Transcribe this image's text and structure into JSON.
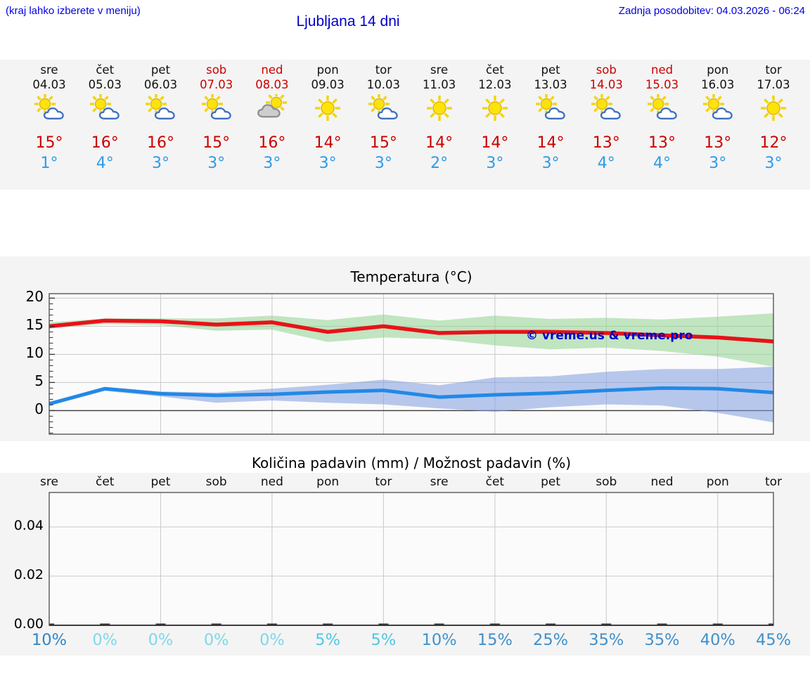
{
  "header": {
    "hint": "(kraj lahko izberete v meniju)",
    "title": "Ljubljana 14 dni",
    "updated": "Zadnja posodobitev: 04.03.2026 - 06:24"
  },
  "watermark": "© vreme.us & vreme.pro",
  "forecast": {
    "days": [
      {
        "name": "sre",
        "date": "04.03",
        "weekend": false,
        "icon": "sun-cloud",
        "high": "15°",
        "low": "1°"
      },
      {
        "name": "čet",
        "date": "05.03",
        "weekend": false,
        "icon": "sun-cloud",
        "high": "16°",
        "low": "4°"
      },
      {
        "name": "pet",
        "date": "06.03",
        "weekend": false,
        "icon": "sun-cloud",
        "high": "16°",
        "low": "3°"
      },
      {
        "name": "sob",
        "date": "07.03",
        "weekend": true,
        "icon": "sun-cloud",
        "high": "15°",
        "low": "3°"
      },
      {
        "name": "ned",
        "date": "08.03",
        "weekend": true,
        "icon": "sun-graycloud",
        "high": "16°",
        "low": "3°"
      },
      {
        "name": "pon",
        "date": "09.03",
        "weekend": false,
        "icon": "sunny",
        "high": "14°",
        "low": "3°"
      },
      {
        "name": "tor",
        "date": "10.03",
        "weekend": false,
        "icon": "sun-cloud",
        "high": "15°",
        "low": "3°"
      },
      {
        "name": "sre",
        "date": "11.03",
        "weekend": false,
        "icon": "sunny",
        "high": "14°",
        "low": "2°"
      },
      {
        "name": "čet",
        "date": "12.03",
        "weekend": false,
        "icon": "sunny",
        "high": "14°",
        "low": "3°"
      },
      {
        "name": "pet",
        "date": "13.03",
        "weekend": false,
        "icon": "sun-cloud",
        "high": "14°",
        "low": "3°"
      },
      {
        "name": "sob",
        "date": "14.03",
        "weekend": true,
        "icon": "sun-cloud",
        "high": "13°",
        "low": "4°"
      },
      {
        "name": "ned",
        "date": "15.03",
        "weekend": true,
        "icon": "sun-cloud",
        "high": "13°",
        "low": "4°"
      },
      {
        "name": "pon",
        "date": "16.03",
        "weekend": false,
        "icon": "sun-cloud",
        "high": "13°",
        "low": "3°"
      },
      {
        "name": "tor",
        "date": "17.03",
        "weekend": false,
        "icon": "sunny",
        "high": "12°",
        "low": "3°"
      }
    ]
  },
  "chart_data": [
    {
      "type": "line",
      "title": "Temperatura (°C)",
      "categories": [
        "sre",
        "čet",
        "pet",
        "sob",
        "ned",
        "pon",
        "tor",
        "sre",
        "čet",
        "pet",
        "sob",
        "ned",
        "pon",
        "tor"
      ],
      "yticks": [
        0,
        5,
        10,
        15,
        20
      ],
      "ylim": [
        -4.2,
        20.8
      ],
      "grid": true,
      "legend": "none",
      "series": [
        {
          "name": "max-temperature",
          "color": "#e81219",
          "band_color": "#8fd48f",
          "values": [
            15,
            16,
            15.9,
            15.3,
            15.7,
            14,
            15,
            13.8,
            14,
            14,
            13.8,
            13.4,
            13,
            12.3
          ],
          "band_upper": [
            15.7,
            16.4,
            16.4,
            16.4,
            16.9,
            16.1,
            17.1,
            16.0,
            16.9,
            16.3,
            16.5,
            16.2,
            16.7,
            17.3
          ],
          "band_lower": [
            14.6,
            15.4,
            15.2,
            14.2,
            14.4,
            12.2,
            13.0,
            12.7,
            11.6,
            10.9,
            11.2,
            10.6,
            9.6,
            7.8
          ]
        },
        {
          "name": "min-temperature",
          "color": "#2289e6",
          "band_color": "#7f9ce0",
          "values": [
            1.2,
            3.9,
            3,
            2.7,
            2.9,
            3.3,
            3.6,
            2.4,
            2.8,
            3.1,
            3.6,
            4,
            3.9,
            3.2
          ],
          "band_upper": [
            1.5,
            4.2,
            3.4,
            3.2,
            3.9,
            4.6,
            5.5,
            4.5,
            5.9,
            6.1,
            6.9,
            7.4,
            7.4,
            7.8
          ],
          "band_lower": [
            0.9,
            3.5,
            2.5,
            1.4,
            1.8,
            1.4,
            1.1,
            0.4,
            -0.2,
            0.6,
            1.1,
            0.9,
            -0.4,
            -2.1
          ]
        }
      ]
    },
    {
      "type": "bar",
      "title": "Količina padavin (mm) / Možnost padavin (%)",
      "categories": [
        "sre",
        "čet",
        "pet",
        "sob",
        "ned",
        "pon",
        "tor",
        "sre",
        "čet",
        "pet",
        "sob",
        "ned",
        "pon",
        "tor"
      ],
      "values": [
        0,
        0,
        0,
        0,
        0,
        0,
        0,
        0,
        0,
        0,
        0,
        0,
        0,
        0
      ],
      "yticks": [
        {
          "label": "0.00",
          "v": 0
        },
        {
          "label": "0.02",
          "v": 0.02
        },
        {
          "label": "0.04",
          "v": 0.04
        }
      ],
      "ylim": [
        0,
        0.054
      ],
      "grid": true,
      "probabilities": [
        {
          "label": "10%",
          "color": "#2f86c6"
        },
        {
          "label": "0%",
          "color": "#7ed8ea"
        },
        {
          "label": "0%",
          "color": "#7ed8ea"
        },
        {
          "label": "0%",
          "color": "#7ed8ea"
        },
        {
          "label": "0%",
          "color": "#7ed8ea"
        },
        {
          "label": "5%",
          "color": "#4ec7e2"
        },
        {
          "label": "5%",
          "color": "#4ec7e2"
        },
        {
          "label": "10%",
          "color": "#3f93cd"
        },
        {
          "label": "15%",
          "color": "#3f8fc9"
        },
        {
          "label": "25%",
          "color": "#3f8fc9"
        },
        {
          "label": "35%",
          "color": "#3f8fc9"
        },
        {
          "label": "35%",
          "color": "#3f8fc9"
        },
        {
          "label": "40%",
          "color": "#3f8fc9"
        },
        {
          "label": "45%",
          "color": "#3f8fc9"
        }
      ]
    }
  ],
  "colors": {
    "strip_bg": "#f4f4f4",
    "plot_bg": "#fbfbfb",
    "grid": "#c9c9c9",
    "spine": "#4a4a4a",
    "zero_line": "#3a3a3a",
    "weekend_red": "#cc0000",
    "high_red": "#cc0000",
    "low_blue": "#2e9ae8",
    "sun_yellow": "#fde20c",
    "cloud_blue_stroke": "#3d6fc2",
    "cloud_gray_fill": "#cdcdcd"
  }
}
